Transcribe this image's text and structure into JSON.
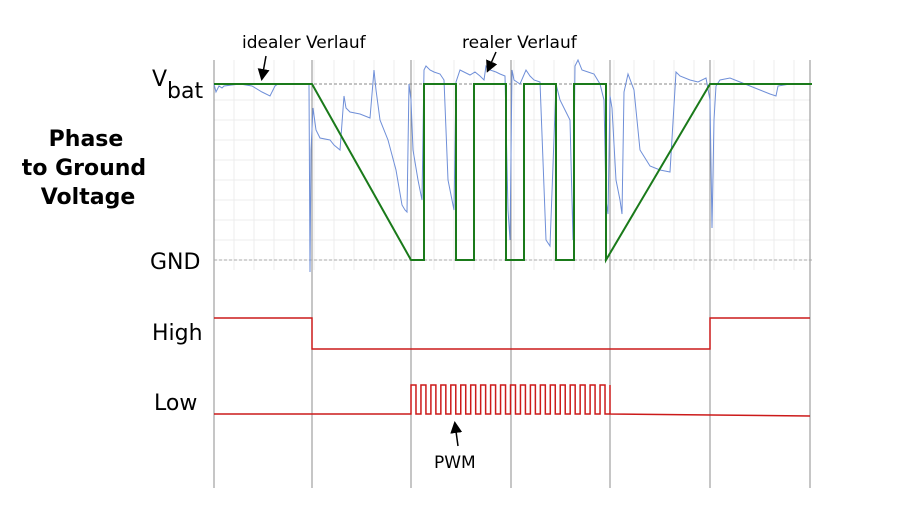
{
  "title": {
    "line1": "Phase",
    "line2": "to Ground",
    "line3": "Voltage"
  },
  "levels": {
    "vbat_main": "V",
    "vbat_sub": "bat",
    "gnd": "GND"
  },
  "signals": {
    "high": "High",
    "low": "Low"
  },
  "annotations": {
    "ideal": "idealer Verlauf",
    "real": "realer Verlauf",
    "pwm": "PWM"
  },
  "colors": {
    "ideal_trace": "#1a7a1a",
    "real_trace": "#6f8fd8",
    "logic_trace": "#cc1a1a",
    "grid": "#9a9a9a",
    "reference": "#999999"
  }
}
